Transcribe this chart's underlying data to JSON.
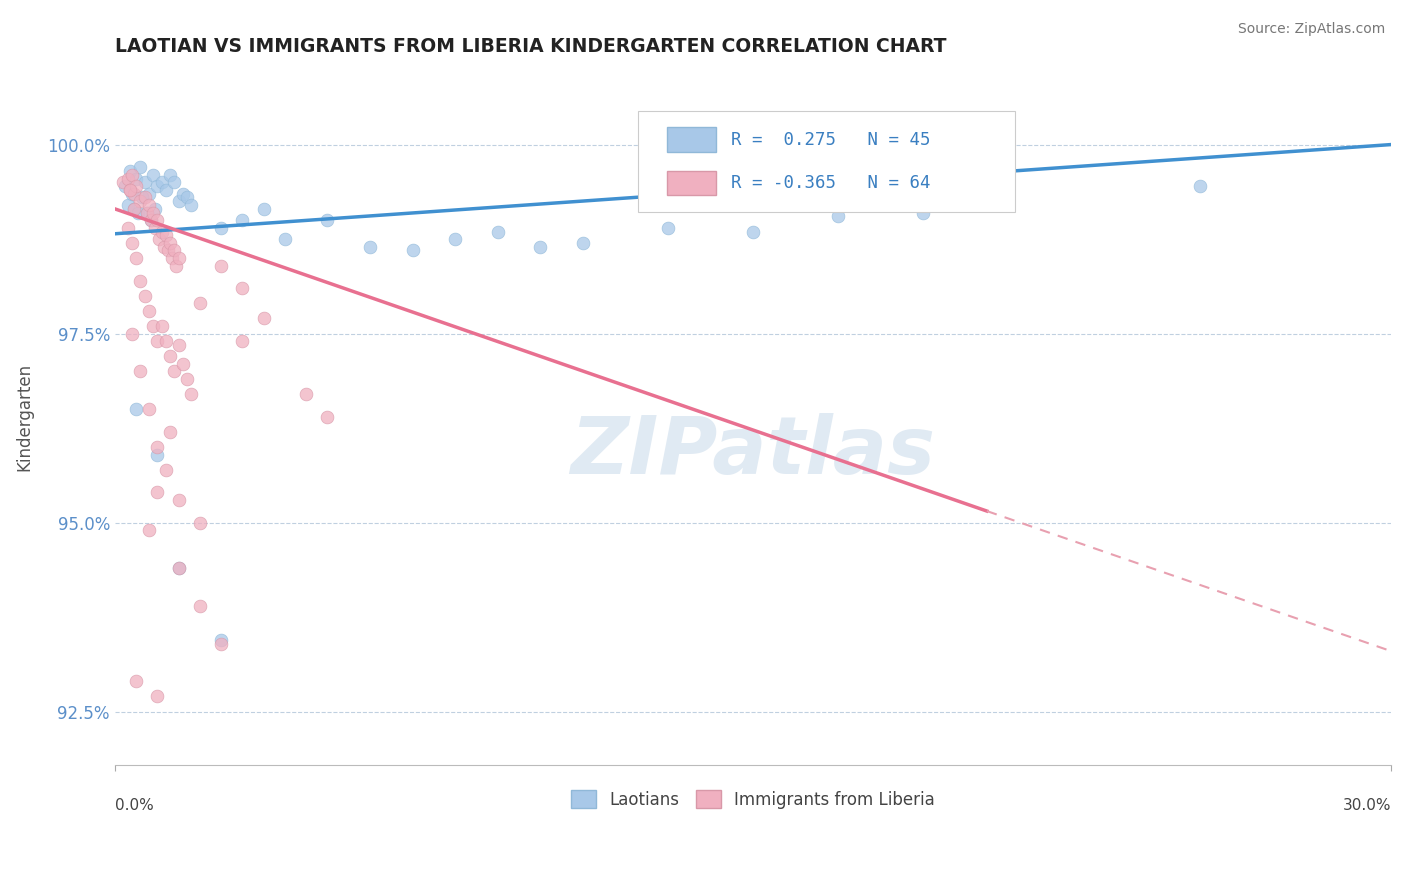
{
  "title": "LAOTIAN VS IMMIGRANTS FROM LIBERIA KINDERGARTEN CORRELATION CHART",
  "source": "Source: ZipAtlas.com",
  "ylabel": "Kindergarten",
  "xlim": [
    0.0,
    30.0
  ],
  "ylim": [
    91.8,
    101.0
  ],
  "yticks": [
    92.5,
    95.0,
    97.5,
    100.0
  ],
  "ytick_labels": [
    "92.5%",
    "95.0%",
    "97.5%",
    "100.0%"
  ],
  "blue_label": "R =  0.275   N = 45",
  "pink_label": "R = -0.365   N = 64",
  "legend_labels": [
    "Laotians",
    "Immigrants from Liberia"
  ],
  "blue_color": "#a8c8e8",
  "pink_color": "#f0b0c0",
  "blue_line_color": "#4090d0",
  "pink_line_color": "#e87090",
  "pink_dash_color": "#e8a0b0",
  "watermark": "ZIPatlas",
  "blue_trend": [
    0.0,
    98.82,
    30.0,
    100.0
  ],
  "pink_trend_solid_end": 20.5,
  "pink_trend": [
    0.0,
    99.15,
    30.0,
    93.3
  ],
  "blue_scatter": [
    [
      0.25,
      99.45
    ],
    [
      0.35,
      99.65
    ],
    [
      0.5,
      99.55
    ],
    [
      0.6,
      99.7
    ],
    [
      0.7,
      99.5
    ],
    [
      0.8,
      99.35
    ],
    [
      0.9,
      99.6
    ],
    [
      1.0,
      99.45
    ],
    [
      1.1,
      99.5
    ],
    [
      1.2,
      99.4
    ],
    [
      1.3,
      99.6
    ],
    [
      1.4,
      99.5
    ],
    [
      1.5,
      99.25
    ],
    [
      1.6,
      99.35
    ],
    [
      1.7,
      99.3
    ],
    [
      1.8,
      99.2
    ],
    [
      0.3,
      99.2
    ],
    [
      0.4,
      99.35
    ],
    [
      0.45,
      99.15
    ],
    [
      0.55,
      99.1
    ],
    [
      0.65,
      99.3
    ],
    [
      0.75,
      99.1
    ],
    [
      0.85,
      99.0
    ],
    [
      0.95,
      99.15
    ],
    [
      2.5,
      98.9
    ],
    [
      3.0,
      99.0
    ],
    [
      3.5,
      99.15
    ],
    [
      4.0,
      98.75
    ],
    [
      5.0,
      99.0
    ],
    [
      6.0,
      98.65
    ],
    [
      7.0,
      98.6
    ],
    [
      8.0,
      98.75
    ],
    [
      9.0,
      98.85
    ],
    [
      10.0,
      98.65
    ],
    [
      11.0,
      98.7
    ],
    [
      13.0,
      98.9
    ],
    [
      15.0,
      98.85
    ],
    [
      17.0,
      99.05
    ],
    [
      19.0,
      99.1
    ],
    [
      21.0,
      99.2
    ],
    [
      0.5,
      96.5
    ],
    [
      1.0,
      95.9
    ],
    [
      1.5,
      94.4
    ],
    [
      2.5,
      93.45
    ],
    [
      25.5,
      99.45
    ]
  ],
  "pink_scatter": [
    [
      0.2,
      99.5
    ],
    [
      0.3,
      99.55
    ],
    [
      0.35,
      99.4
    ],
    [
      0.4,
      99.6
    ],
    [
      0.45,
      99.35
    ],
    [
      0.5,
      99.45
    ],
    [
      0.6,
      99.25
    ],
    [
      0.7,
      99.3
    ],
    [
      0.75,
      99.1
    ],
    [
      0.8,
      99.2
    ],
    [
      0.85,
      99.0
    ],
    [
      0.9,
      99.1
    ],
    [
      0.95,
      98.9
    ],
    [
      1.0,
      99.0
    ],
    [
      1.05,
      98.75
    ],
    [
      1.1,
      98.85
    ],
    [
      1.15,
      98.65
    ],
    [
      1.2,
      98.8
    ],
    [
      1.25,
      98.6
    ],
    [
      1.3,
      98.7
    ],
    [
      1.35,
      98.5
    ],
    [
      1.4,
      98.6
    ],
    [
      1.45,
      98.4
    ],
    [
      1.5,
      98.5
    ],
    [
      0.3,
      98.9
    ],
    [
      0.4,
      98.7
    ],
    [
      0.5,
      98.5
    ],
    [
      0.6,
      98.2
    ],
    [
      0.7,
      98.0
    ],
    [
      0.8,
      97.8
    ],
    [
      0.9,
      97.6
    ],
    [
      1.0,
      97.4
    ],
    [
      1.1,
      97.6
    ],
    [
      1.2,
      97.4
    ],
    [
      1.3,
      97.2
    ],
    [
      1.4,
      97.0
    ],
    [
      1.5,
      97.35
    ],
    [
      1.6,
      97.1
    ],
    [
      1.7,
      96.9
    ],
    [
      1.8,
      96.7
    ],
    [
      0.4,
      97.5
    ],
    [
      0.6,
      97.0
    ],
    [
      0.8,
      96.5
    ],
    [
      1.0,
      96.0
    ],
    [
      1.2,
      95.7
    ],
    [
      1.5,
      95.3
    ],
    [
      2.0,
      95.0
    ],
    [
      0.8,
      94.9
    ],
    [
      1.5,
      94.4
    ],
    [
      2.0,
      93.9
    ],
    [
      2.5,
      93.4
    ],
    [
      0.5,
      92.9
    ],
    [
      1.0,
      92.7
    ],
    [
      4.5,
      96.7
    ],
    [
      3.0,
      97.4
    ],
    [
      3.0,
      98.1
    ],
    [
      3.5,
      97.7
    ],
    [
      2.5,
      98.4
    ],
    [
      2.0,
      97.9
    ],
    [
      0.35,
      99.4
    ],
    [
      0.45,
      99.15
    ],
    [
      5.0,
      96.4
    ],
    [
      1.3,
      96.2
    ],
    [
      1.0,
      95.4
    ]
  ]
}
